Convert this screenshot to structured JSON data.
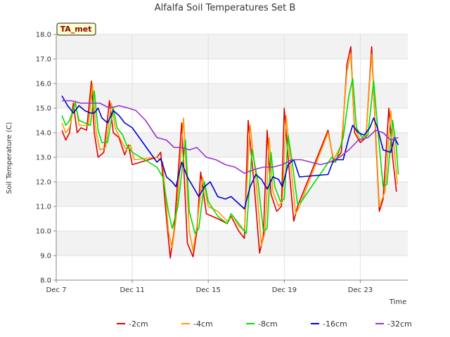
{
  "chart_data": {
    "type": "line",
    "title": "Alfalfa Soil Temperatures Set B",
    "xlabel": "Time",
    "ylabel": "Soil Temperature (C)",
    "badge": "TA_met",
    "xlim": [
      7,
      25.5
    ],
    "ylim": [
      8.0,
      18.0
    ],
    "yticks": [
      8.0,
      9.0,
      10.0,
      11.0,
      12.0,
      13.0,
      14.0,
      15.0,
      16.0,
      17.0,
      18.0
    ],
    "xticks": [
      {
        "value": 7,
        "label": "Dec 7"
      },
      {
        "value": 11,
        "label": "Dec 11"
      },
      {
        "value": 15,
        "label": "Dec 15"
      },
      {
        "value": 19,
        "label": "Dec 19"
      },
      {
        "value": 23,
        "label": "Dec 23"
      }
    ],
    "legend_position": "bottom",
    "series": [
      {
        "name": "-2cm",
        "color": "#dd0000",
        "points": [
          [
            7.3,
            14.1
          ],
          [
            7.5,
            13.7
          ],
          [
            7.7,
            14.0
          ],
          [
            7.9,
            15.2
          ],
          [
            8.1,
            14.0
          ],
          [
            8.3,
            14.2
          ],
          [
            8.6,
            14.1
          ],
          [
            8.85,
            16.1
          ],
          [
            9.0,
            14.0
          ],
          [
            9.2,
            13.0
          ],
          [
            9.5,
            13.2
          ],
          [
            9.8,
            15.3
          ],
          [
            10.0,
            14.0
          ],
          [
            10.3,
            13.8
          ],
          [
            10.6,
            13.1
          ],
          [
            10.8,
            13.5
          ],
          [
            11.0,
            12.7
          ],
          [
            12.3,
            13.0
          ],
          [
            12.5,
            13.2
          ],
          [
            12.8,
            10.5
          ],
          [
            13.0,
            8.9
          ],
          [
            13.2,
            10.0
          ],
          [
            13.6,
            14.4
          ],
          [
            13.9,
            9.5
          ],
          [
            14.2,
            8.95
          ],
          [
            14.4,
            10.0
          ],
          [
            14.6,
            12.4
          ],
          [
            14.9,
            10.7
          ],
          [
            15.5,
            10.5
          ],
          [
            16.0,
            10.3
          ],
          [
            16.2,
            10.6
          ],
          [
            16.4,
            10.3
          ],
          [
            16.6,
            10.0
          ],
          [
            16.9,
            9.7
          ],
          [
            17.1,
            14.5
          ],
          [
            17.4,
            12.0
          ],
          [
            17.7,
            9.1
          ],
          [
            17.9,
            9.8
          ],
          [
            18.1,
            14.1
          ],
          [
            18.3,
            11.5
          ],
          [
            18.6,
            10.8
          ],
          [
            18.85,
            11.0
          ],
          [
            19.0,
            15.0
          ],
          [
            19.2,
            13.0
          ],
          [
            19.5,
            10.4
          ],
          [
            19.7,
            11.0
          ],
          [
            21.3,
            14.1
          ],
          [
            21.6,
            12.8
          ],
          [
            22.0,
            13.2
          ],
          [
            22.3,
            16.8
          ],
          [
            22.5,
            17.5
          ],
          [
            22.7,
            14.0
          ],
          [
            23.0,
            13.6
          ],
          [
            23.3,
            13.8
          ],
          [
            23.6,
            17.5
          ],
          [
            23.8,
            14.0
          ],
          [
            24.0,
            10.8
          ],
          [
            24.2,
            11.3
          ],
          [
            24.5,
            15.0
          ],
          [
            24.7,
            13.0
          ],
          [
            24.9,
            11.6
          ]
        ]
      },
      {
        "name": "-4cm",
        "color": "#ff9900",
        "points": [
          [
            7.3,
            14.4
          ],
          [
            7.5,
            14.0
          ],
          [
            7.7,
            14.2
          ],
          [
            8.0,
            15.3
          ],
          [
            8.2,
            14.3
          ],
          [
            8.5,
            14.3
          ],
          [
            8.7,
            14.3
          ],
          [
            8.9,
            16.0
          ],
          [
            9.1,
            14.0
          ],
          [
            9.3,
            13.3
          ],
          [
            9.6,
            13.4
          ],
          [
            9.9,
            15.2
          ],
          [
            10.1,
            14.2
          ],
          [
            10.4,
            13.7
          ],
          [
            10.7,
            13.3
          ],
          [
            10.9,
            13.5
          ],
          [
            11.1,
            12.9
          ],
          [
            12.3,
            13.0
          ],
          [
            12.6,
            12.8
          ],
          [
            12.9,
            10.0
          ],
          [
            13.1,
            9.3
          ],
          [
            13.3,
            10.5
          ],
          [
            13.7,
            14.6
          ],
          [
            14.0,
            10.0
          ],
          [
            14.2,
            9.2
          ],
          [
            14.4,
            10.2
          ],
          [
            14.7,
            12.2
          ],
          [
            15.0,
            11.0
          ],
          [
            15.5,
            10.8
          ],
          [
            16.0,
            10.4
          ],
          [
            16.3,
            10.6
          ],
          [
            16.6,
            10.2
          ],
          [
            16.9,
            10.0
          ],
          [
            17.2,
            14.3
          ],
          [
            17.5,
            12.2
          ],
          [
            17.8,
            9.4
          ],
          [
            18.0,
            10.0
          ],
          [
            18.2,
            13.8
          ],
          [
            18.4,
            11.6
          ],
          [
            18.7,
            11.0
          ],
          [
            18.9,
            11.2
          ],
          [
            19.1,
            14.7
          ],
          [
            19.3,
            13.0
          ],
          [
            19.6,
            10.7
          ],
          [
            19.8,
            11.0
          ],
          [
            21.3,
            14.0
          ],
          [
            21.6,
            12.9
          ],
          [
            22.0,
            13.5
          ],
          [
            22.3,
            16.5
          ],
          [
            22.5,
            17.2
          ],
          [
            22.7,
            14.2
          ],
          [
            23.0,
            13.7
          ],
          [
            23.3,
            13.9
          ],
          [
            23.6,
            17.2
          ],
          [
            23.8,
            14.2
          ],
          [
            24.0,
            11.0
          ],
          [
            24.3,
            11.6
          ],
          [
            24.6,
            14.9
          ],
          [
            24.8,
            13.2
          ],
          [
            24.95,
            11.9
          ]
        ]
      },
      {
        "name": "-8cm",
        "color": "#00dd00",
        "points": [
          [
            7.3,
            14.7
          ],
          [
            7.5,
            14.3
          ],
          [
            7.7,
            14.5
          ],
          [
            8.0,
            15.2
          ],
          [
            8.2,
            14.5
          ],
          [
            8.5,
            14.4
          ],
          [
            8.8,
            14.3
          ],
          [
            9.0,
            15.7
          ],
          [
            9.2,
            14.1
          ],
          [
            9.4,
            13.6
          ],
          [
            9.7,
            13.6
          ],
          [
            10.0,
            15.0
          ],
          [
            10.2,
            14.2
          ],
          [
            10.5,
            13.9
          ],
          [
            10.7,
            13.5
          ],
          [
            11.0,
            13.2
          ],
          [
            12.3,
            12.6
          ],
          [
            12.6,
            12.2
          ],
          [
            12.9,
            10.8
          ],
          [
            13.1,
            10.1
          ],
          [
            13.4,
            11.0
          ],
          [
            13.8,
            13.7
          ],
          [
            14.0,
            10.8
          ],
          [
            14.3,
            9.9
          ],
          [
            14.5,
            10.1
          ],
          [
            14.8,
            12.0
          ],
          [
            15.0,
            11.2
          ],
          [
            15.5,
            10.6
          ],
          [
            16.0,
            10.3
          ],
          [
            16.2,
            10.7
          ],
          [
            16.5,
            10.4
          ],
          [
            17.0,
            9.9
          ],
          [
            17.3,
            13.3
          ],
          [
            17.6,
            12.1
          ],
          [
            17.9,
            10.0
          ],
          [
            18.1,
            10.1
          ],
          [
            18.3,
            13.2
          ],
          [
            18.5,
            11.8
          ],
          [
            18.8,
            11.2
          ],
          [
            19.0,
            11.3
          ],
          [
            19.2,
            13.9
          ],
          [
            19.4,
            12.9
          ],
          [
            19.7,
            11.1
          ],
          [
            19.9,
            11.2
          ],
          [
            21.5,
            13.0
          ],
          [
            21.7,
            12.8
          ],
          [
            22.1,
            13.8
          ],
          [
            22.4,
            15.5
          ],
          [
            22.6,
            16.2
          ],
          [
            22.8,
            14.2
          ],
          [
            23.1,
            13.8
          ],
          [
            23.4,
            13.9
          ],
          [
            23.7,
            16.1
          ],
          [
            23.9,
            14.3
          ],
          [
            24.2,
            11.8
          ],
          [
            24.4,
            11.9
          ],
          [
            24.7,
            14.5
          ],
          [
            24.9,
            13.4
          ],
          [
            25.0,
            12.3
          ]
        ]
      },
      {
        "name": "-16cm",
        "color": "#0000cc",
        "points": [
          [
            7.3,
            15.5
          ],
          [
            7.6,
            15.1
          ],
          [
            7.9,
            14.8
          ],
          [
            8.2,
            15.1
          ],
          [
            8.5,
            14.9
          ],
          [
            8.8,
            14.8
          ],
          [
            9.0,
            14.8
          ],
          [
            9.2,
            15.0
          ],
          [
            9.4,
            14.6
          ],
          [
            9.7,
            14.4
          ],
          [
            10.0,
            14.9
          ],
          [
            10.3,
            14.7
          ],
          [
            10.6,
            14.4
          ],
          [
            11.0,
            14.2
          ],
          [
            12.3,
            12.8
          ],
          [
            12.5,
            12.95
          ],
          [
            12.8,
            12.2
          ],
          [
            13.1,
            12.0
          ],
          [
            13.3,
            11.8
          ],
          [
            13.6,
            12.8
          ],
          [
            13.9,
            12.2
          ],
          [
            14.2,
            11.8
          ],
          [
            14.5,
            11.4
          ],
          [
            14.8,
            11.8
          ],
          [
            15.1,
            12.0
          ],
          [
            15.5,
            11.4
          ],
          [
            15.9,
            11.3
          ],
          [
            16.2,
            11.4
          ],
          [
            16.9,
            10.9
          ],
          [
            17.2,
            11.8
          ],
          [
            17.5,
            12.3
          ],
          [
            17.8,
            12.1
          ],
          [
            18.1,
            11.7
          ],
          [
            18.4,
            12.2
          ],
          [
            18.7,
            12.1
          ],
          [
            18.9,
            11.8
          ],
          [
            19.2,
            12.7
          ],
          [
            19.5,
            12.9
          ],
          [
            19.8,
            12.2
          ],
          [
            21.3,
            12.3
          ],
          [
            21.6,
            12.9
          ],
          [
            22.1,
            12.9
          ],
          [
            22.4,
            13.8
          ],
          [
            22.6,
            14.3
          ],
          [
            22.9,
            14.0
          ],
          [
            23.2,
            13.9
          ],
          [
            23.5,
            14.2
          ],
          [
            23.7,
            14.6
          ],
          [
            23.9,
            14.2
          ],
          [
            24.2,
            13.3
          ],
          [
            24.6,
            13.2
          ],
          [
            24.8,
            13.8
          ],
          [
            25.0,
            13.5
          ]
        ]
      },
      {
        "name": "-32cm",
        "color": "#9933cc",
        "points": [
          [
            7.3,
            15.3
          ],
          [
            7.8,
            15.3
          ],
          [
            8.3,
            15.2
          ],
          [
            8.8,
            15.2
          ],
          [
            9.3,
            15.2
          ],
          [
            9.8,
            15.0
          ],
          [
            10.3,
            15.1
          ],
          [
            10.8,
            15.0
          ],
          [
            11.2,
            14.9
          ],
          [
            11.7,
            14.5
          ],
          [
            12.3,
            13.8
          ],
          [
            12.8,
            13.7
          ],
          [
            13.2,
            13.4
          ],
          [
            13.6,
            13.4
          ],
          [
            14.0,
            13.3
          ],
          [
            14.4,
            13.4
          ],
          [
            14.9,
            13.0
          ],
          [
            15.4,
            12.9
          ],
          [
            15.9,
            12.7
          ],
          [
            16.4,
            12.6
          ],
          [
            16.9,
            12.35
          ],
          [
            17.4,
            12.5
          ],
          [
            17.9,
            12.6
          ],
          [
            18.4,
            12.6
          ],
          [
            18.9,
            12.7
          ],
          [
            19.4,
            12.9
          ],
          [
            19.9,
            12.9
          ],
          [
            20.4,
            12.8
          ],
          [
            20.9,
            12.7
          ],
          [
            21.4,
            12.8
          ],
          [
            21.9,
            13.0
          ],
          [
            22.4,
            13.3
          ],
          [
            22.9,
            13.7
          ],
          [
            23.4,
            13.8
          ],
          [
            23.8,
            14.1
          ],
          [
            24.2,
            14.0
          ],
          [
            24.6,
            13.7
          ],
          [
            25.0,
            13.8
          ]
        ]
      }
    ]
  }
}
